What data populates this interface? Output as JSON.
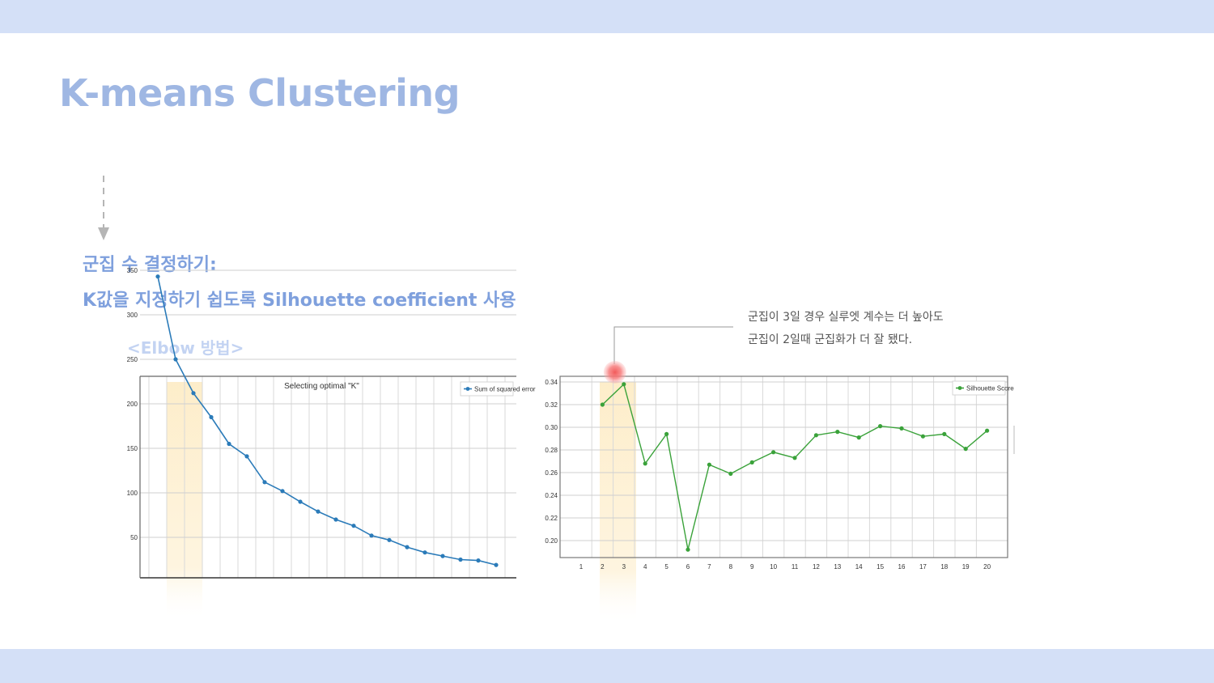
{
  "slide": {
    "title": "K-means Clustering",
    "heading_1": "군집 수 결정하기:",
    "heading_2": "K값을 지정하기 쉽도록 Silhouette coefficient 사용",
    "elbow_label": "<Elbow 방법>",
    "annotation_line_1": "군집이  3일  경우  실루엣  계수는  더  높아도",
    "annotation_line_2": "군집이 2일때 군집화가 더 잘 됐다."
  },
  "chart_data": [
    {
      "type": "line",
      "title": "Selecting optimal \"K\"",
      "series": [
        {
          "name": "Sum of squared error",
          "color": "#2b7bb9",
          "x": [
            1,
            2,
            3,
            4,
            5,
            6,
            7,
            8,
            9,
            10,
            11,
            12,
            13,
            14,
            15,
            16,
            17,
            18,
            19,
            20
          ],
          "values": [
            343,
            250,
            212,
            185,
            155,
            141,
            112,
            102,
            90,
            79,
            70,
            63,
            52,
            47,
            39,
            33,
            29,
            25,
            24,
            19
          ]
        }
      ],
      "ylim": [
        0,
        360
      ],
      "yticks": [
        50,
        100,
        150,
        200,
        250,
        300,
        350
      ],
      "highlight_x": [
        2,
        3
      ],
      "grid": true,
      "legend": "top-right"
    },
    {
      "type": "line",
      "series": [
        {
          "name": "Silhouette Score",
          "color": "#3aa23a",
          "x": [
            2,
            3,
            4,
            5,
            6,
            7,
            8,
            9,
            10,
            11,
            12,
            13,
            14,
            15,
            16,
            17,
            18,
            19,
            20
          ],
          "values": [
            0.32,
            0.338,
            0.268,
            0.294,
            0.192,
            0.267,
            0.259,
            0.269,
            0.278,
            0.273,
            0.293,
            0.296,
            0.291,
            0.301,
            0.299,
            0.292,
            0.294,
            0.281,
            0.297
          ]
        }
      ],
      "xticks": [
        1,
        2,
        3,
        4,
        5,
        6,
        7,
        8,
        9,
        10,
        11,
        12,
        13,
        14,
        15,
        16,
        17,
        18,
        19,
        20
      ],
      "yticks": [
        0.2,
        0.22,
        0.24,
        0.26,
        0.28,
        0.3,
        0.32,
        0.34
      ],
      "ylim": [
        0.185,
        0.345
      ],
      "highlight_x": [
        2,
        3
      ],
      "marker_x": 3,
      "grid": true,
      "legend": "top-right"
    }
  ]
}
